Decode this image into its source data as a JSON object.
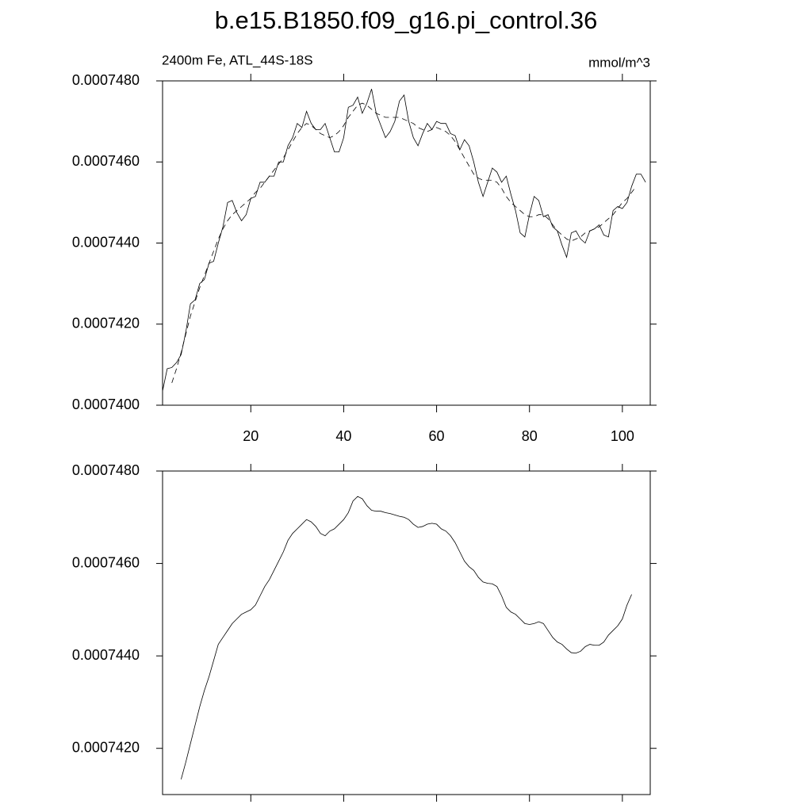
{
  "chart_data": [
    {
      "type": "line",
      "title": "b.e15.B1850.f09_g16.pi_control.36",
      "subtitle_left": "2400m Fe, ATL_44S-18S",
      "subtitle_right": "mmol/m^3",
      "x": [
        1,
        2,
        3,
        4,
        5,
        6,
        7,
        8,
        9,
        10,
        11,
        12,
        13,
        14,
        15,
        16,
        17,
        18,
        19,
        20,
        21,
        22,
        23,
        24,
        25,
        26,
        27,
        28,
        29,
        30,
        31,
        32,
        33,
        34,
        35,
        36,
        37,
        38,
        39,
        40,
        41,
        42,
        43,
        44,
        45,
        46,
        47,
        48,
        49,
        50,
        51,
        52,
        53,
        54,
        55,
        56,
        57,
        58,
        59,
        60,
        61,
        62,
        63,
        64,
        65,
        66,
        67,
        68,
        69,
        70,
        71,
        72,
        73,
        74,
        75,
        76,
        77,
        78,
        79,
        80,
        81,
        82,
        83,
        84,
        85,
        86,
        87,
        88,
        89,
        90,
        91,
        92,
        93,
        94,
        95,
        96,
        97,
        98,
        99,
        100,
        101,
        102,
        103,
        104,
        105
      ],
      "series": [
        {
          "color": "#000000",
          "style": "solid",
          "values": [
            0.00074035,
            0.0007409,
            0.00074093,
            0.00074105,
            0.00074125,
            0.0007418,
            0.0007425,
            0.0007426,
            0.000743,
            0.0007431,
            0.0007435,
            0.00074355,
            0.000744,
            0.0007444,
            0.000745,
            0.00074505,
            0.00074475,
            0.00074455,
            0.0007447,
            0.0007451,
            0.00074515,
            0.0007455,
            0.0007455,
            0.00074565,
            0.00074565,
            0.000746,
            0.000746,
            0.0007464,
            0.0007466,
            0.00074695,
            0.00074685,
            0.00074725,
            0.00074695,
            0.0007468,
            0.0007468,
            0.00074695,
            0.0007466,
            0.00074625,
            0.00074625,
            0.0007466,
            0.00074735,
            0.0007474,
            0.0007476,
            0.0007472,
            0.00074745,
            0.0007478,
            0.0007472,
            0.0007469,
            0.0007466,
            0.00074675,
            0.000747,
            0.0007475,
            0.00074765,
            0.000747,
            0.0007466,
            0.0007464,
            0.0007467,
            0.00074695,
            0.0007468,
            0.000747,
            0.00074695,
            0.00074695,
            0.0007467,
            0.00074665,
            0.0007463,
            0.00074655,
            0.0007464,
            0.000746,
            0.0007455,
            0.00074515,
            0.0007455,
            0.00074585,
            0.00074575,
            0.0007455,
            0.00074565,
            0.0007452,
            0.0007448,
            0.00074425,
            0.00074415,
            0.0007447,
            0.00074515,
            0.00074505,
            0.00074465,
            0.0007447,
            0.0007444,
            0.0007443,
            0.00074395,
            0.00074365,
            0.00074425,
            0.0007443,
            0.0007441,
            0.000744,
            0.0007443,
            0.00074435,
            0.00074445,
            0.0007442,
            0.00074415,
            0.0007448,
            0.0007449,
            0.00074485,
            0.000745,
            0.0007454,
            0.0007457,
            0.0007457,
            0.0007455
          ]
        },
        {
          "color": "#000000",
          "style": "dashed",
          "values": [
            null,
            null,
            0.00074055,
            0.0007409,
            0.0007413,
            0.00074175,
            0.0007422,
            0.00074255,
            0.0007429,
            0.0007432,
            0.0007435,
            0.0007438,
            0.0007441,
            0.00074435,
            0.00074455,
            0.0007447,
            0.0007448,
            0.0007449,
            0.000745,
            0.0007451,
            0.00074525,
            0.00074535,
            0.0007455,
            0.00074565,
            0.0007458,
            0.00074595,
            0.0007461,
            0.0007463,
            0.0007465,
            0.0007467,
            0.00074685,
            0.00074695,
            0.0007469,
            0.0007468,
            0.0007467,
            0.00074665,
            0.0007466,
            0.00074665,
            0.00074675,
            0.0007469,
            0.0007471,
            0.00074725,
            0.0007474,
            0.00074745,
            0.0007474,
            0.0007473,
            0.0007472,
            0.00074715,
            0.0007471,
            0.0007471,
            0.0007471,
            0.0007471,
            0.00074705,
            0.000747,
            0.00074695,
            0.00074685,
            0.0007468,
            0.00074675,
            0.0007468,
            0.00074685,
            0.0007468,
            0.00074675,
            0.00074665,
            0.0007465,
            0.0007463,
            0.0007461,
            0.0007459,
            0.0007457,
            0.0007456,
            0.00074555,
            0.00074555,
            0.00074555,
            0.0007455,
            0.00074535,
            0.00074515,
            0.000745,
            0.0007449,
            0.0007448,
            0.0007447,
            0.00074465,
            0.00074465,
            0.0007447,
            0.0007447,
            0.0007446,
            0.00074445,
            0.0007443,
            0.0007442,
            0.0007441,
            0.00074405,
            0.0007441,
            0.00074415,
            0.00074425,
            0.0007443,
            0.00074435,
            0.0007444,
            0.0007445,
            0.0007446,
            0.0007447,
            0.00074485,
            0.000745,
            0.0007451,
            0.00074525,
            0.0007454,
            null,
            null
          ]
        }
      ],
      "xlim": [
        1,
        106
      ],
      "xticks": [
        20,
        40,
        60,
        80,
        100
      ],
      "ylim": [
        0.00074,
        0.000748
      ],
      "yticks": [
        {
          "value": 0.00074,
          "label": "0.0007400"
        },
        {
          "value": 0.000742,
          "label": "0.0007420"
        },
        {
          "value": 0.000744,
          "label": "0.0007440"
        },
        {
          "value": 0.000746,
          "label": "0.0007460"
        },
        {
          "value": 0.000748,
          "label": "0.0007480"
        }
      ]
    },
    {
      "type": "line",
      "x": [
        1,
        2,
        3,
        4,
        5,
        6,
        7,
        8,
        9,
        10,
        11,
        12,
        13,
        14,
        15,
        16,
        17,
        18,
        19,
        20,
        21,
        22,
        23,
        24,
        25,
        26,
        27,
        28,
        29,
        30,
        31,
        32,
        33,
        34,
        35,
        36,
        37,
        38,
        39,
        40,
        41,
        42,
        43,
        44,
        45,
        46,
        47,
        48,
        49,
        50,
        51,
        52,
        53,
        54,
        55,
        56,
        57,
        58,
        59,
        60,
        61,
        62,
        63,
        64,
        65,
        66,
        67,
        68,
        69,
        70,
        71,
        72,
        73,
        74,
        75,
        76,
        77,
        78,
        79,
        80,
        81,
        82,
        83,
        84,
        85,
        86,
        87,
        88,
        89,
        90,
        91,
        92,
        93,
        94,
        95,
        96,
        97,
        98,
        99,
        100,
        101,
        102,
        103,
        104,
        105
      ],
      "series": [
        {
          "color": "#000000",
          "style": "solid",
          "values": [
            null,
            null,
            null,
            null,
            0.00074133,
            0.0007417,
            0.0007421,
            0.0007425,
            0.0007429,
            0.00074325,
            0.00074355,
            0.0007439,
            0.00074425,
            0.0007444,
            0.00074455,
            0.0007447,
            0.0007448,
            0.0007449,
            0.00074495,
            0.000745,
            0.0007451,
            0.0007453,
            0.0007455,
            0.00074565,
            0.00074585,
            0.00074605,
            0.00074625,
            0.0007465,
            0.00074665,
            0.00074675,
            0.00074685,
            0.00074695,
            0.0007469,
            0.0007468,
            0.00074665,
            0.0007466,
            0.0007467,
            0.00074675,
            0.00074685,
            0.00074695,
            0.0007471,
            0.00074735,
            0.00074745,
            0.0007474,
            0.00074725,
            0.00074715,
            0.00074713,
            0.00074713,
            0.0007471,
            0.00074708,
            0.00074705,
            0.00074702,
            0.000747,
            0.00074695,
            0.00074685,
            0.00074678,
            0.0007468,
            0.00074685,
            0.00074687,
            0.00074685,
            0.00074675,
            0.0007467,
            0.0007466,
            0.00074645,
            0.00074625,
            0.00074605,
            0.00074593,
            0.00074585,
            0.0007457,
            0.0007456,
            0.00074557,
            0.00074556,
            0.0007455,
            0.0007453,
            0.00074505,
            0.00074495,
            0.0007449,
            0.0007448,
            0.0007447,
            0.00074468,
            0.0007447,
            0.00074474,
            0.0007447,
            0.00074455,
            0.0007444,
            0.0007443,
            0.00074425,
            0.00074415,
            0.00074407,
            0.00074406,
            0.0007441,
            0.0007442,
            0.00074425,
            0.00074423,
            0.00074423,
            0.0007443,
            0.00074445,
            0.00074455,
            0.00074465,
            0.0007448,
            0.0007451,
            0.00074533,
            null,
            null,
            null
          ]
        }
      ],
      "xlim": [
        1,
        106
      ],
      "ylim": [
        0.000741,
        0.000748
      ],
      "yticks": [
        {
          "value": 0.000742,
          "label": "0.0007420"
        },
        {
          "value": 0.000744,
          "label": "0.0007440"
        },
        {
          "value": 0.000746,
          "label": "0.0007460"
        },
        {
          "value": 0.000748,
          "label": "0.0007480"
        }
      ]
    }
  ]
}
